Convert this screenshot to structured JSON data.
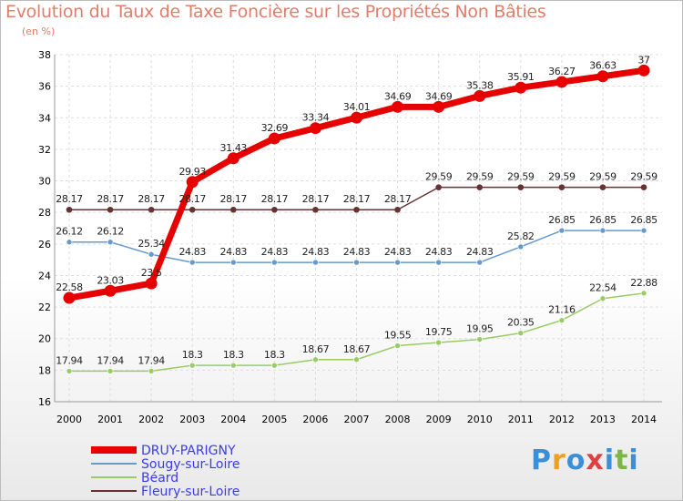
{
  "header": {
    "title": "Evolution du Taux de Taxe Foncière sur les Propriétés Non Bâties",
    "unit": "(en %)"
  },
  "logo": {
    "letters": [
      "P",
      "r",
      "o",
      "x",
      "i",
      "t",
      "i"
    ],
    "colors": [
      "#3a8fd6",
      "#f0a020",
      "#3a8fd6",
      "#e04040",
      "#3a8fd6",
      "#7ab648",
      "#3a8fd6"
    ]
  },
  "chart_data": {
    "type": "line",
    "x": [
      "2000",
      "2001",
      "2002",
      "2003",
      "2004",
      "2005",
      "2006",
      "2007",
      "2008",
      "2009",
      "2010",
      "2011",
      "2012",
      "2013",
      "2014"
    ],
    "ylim": [
      16,
      38
    ],
    "yticks": [
      16,
      18,
      20,
      22,
      24,
      26,
      28,
      30,
      32,
      34,
      36,
      38
    ],
    "grid": true,
    "legend": "bottom-left",
    "series": [
      {
        "name": "DRUY-PARIGNY",
        "color": "#e60000",
        "values": [
          22.58,
          23.03,
          23.5,
          29.93,
          31.43,
          32.69,
          33.34,
          34.01,
          34.69,
          34.69,
          35.38,
          35.91,
          36.27,
          36.63,
          37
        ],
        "labels": [
          "22.58",
          "23.03",
          "23.5",
          "29.93",
          "31.43",
          "32.69",
          "33.34",
          "34.01",
          "34.69",
          "34.69",
          "35.38",
          "35.91",
          "36.27",
          "36.63",
          "37"
        ]
      },
      {
        "name": "Sougy-sur-Loire",
        "color": "#6699cc",
        "values": [
          26.12,
          26.12,
          25.34,
          24.83,
          24.83,
          24.83,
          24.83,
          24.83,
          24.83,
          24.83,
          24.83,
          25.82,
          26.85,
          26.85,
          26.85
        ],
        "labels": [
          "26.12",
          "26.12",
          "25.34",
          "24.83",
          "24.83",
          "24.83",
          "24.83",
          "24.83",
          "24.83",
          "24.83",
          "24.83",
          "25.82",
          "26.85",
          "26.85",
          "26.85"
        ]
      },
      {
        "name": "Béard",
        "color": "#99cc66",
        "values": [
          17.94,
          17.94,
          17.94,
          18.3,
          18.3,
          18.3,
          18.67,
          18.67,
          19.55,
          19.75,
          19.95,
          20.35,
          21.16,
          22.54,
          22.88
        ],
        "labels": [
          "17.94",
          "17.94",
          "17.94",
          "18.3",
          "18.3",
          "18.3",
          "18.67",
          "18.67",
          "19.55",
          "19.75",
          "19.95",
          "20.35",
          "21.16",
          "22.54",
          "22.88"
        ]
      },
      {
        "name": "Fleury-sur-Loire",
        "color": "#663333",
        "values": [
          28.17,
          28.17,
          28.17,
          28.17,
          28.17,
          28.17,
          28.17,
          28.17,
          28.17,
          29.59,
          29.59,
          29.59,
          29.59,
          29.59,
          29.59
        ],
        "labels": [
          "28.17",
          "28.17",
          "28.17",
          "28.17",
          "28.17",
          "28.17",
          "28.17",
          "28.17",
          "28.17",
          "29.59",
          "29.59",
          "29.59",
          "29.59",
          "29.59",
          "29.59"
        ]
      }
    ]
  }
}
